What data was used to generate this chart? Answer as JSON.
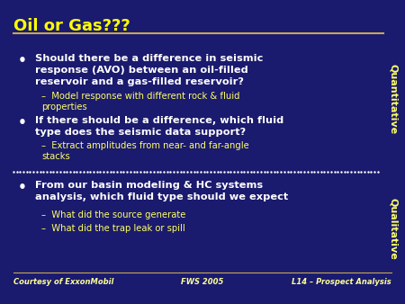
{
  "title": "Oil or Gas???",
  "title_color": "#FFFF00",
  "bg_color": "#1a1a6e",
  "line_color": "#C8A850",
  "text_color": "#FFFFFF",
  "sub_color": "#FFFF66",
  "footer_color": "#FFFF99",
  "bullet1_main": "Should there be a difference in seismic\nresponse (AVO) between an oil-filled\nreservoir and a gas-filled reservoir?",
  "bullet1_sub": "Model response with different rock & fluid\nproperties",
  "bullet2_main": "If there should be a difference, which fluid\ntype does the seismic data support?",
  "bullet2_sub": "Extract amplitudes from near- and far-angle\nstacks",
  "bullet3_main": "From our basin modeling & HC systems\nanalysis, which fluid type should we expect",
  "bullet3_sub1": "What did the source generate",
  "bullet3_sub2": "What did the trap leak or spill",
  "label_quant": "Quantitative",
  "label_qual": "Qualitative",
  "footer_left": "Courtesy of ExxonMobil",
  "footer_center": "FWS 2005",
  "footer_right": "L14 – Prospect Analysis",
  "dotted_line_color": "#FFFFFF"
}
